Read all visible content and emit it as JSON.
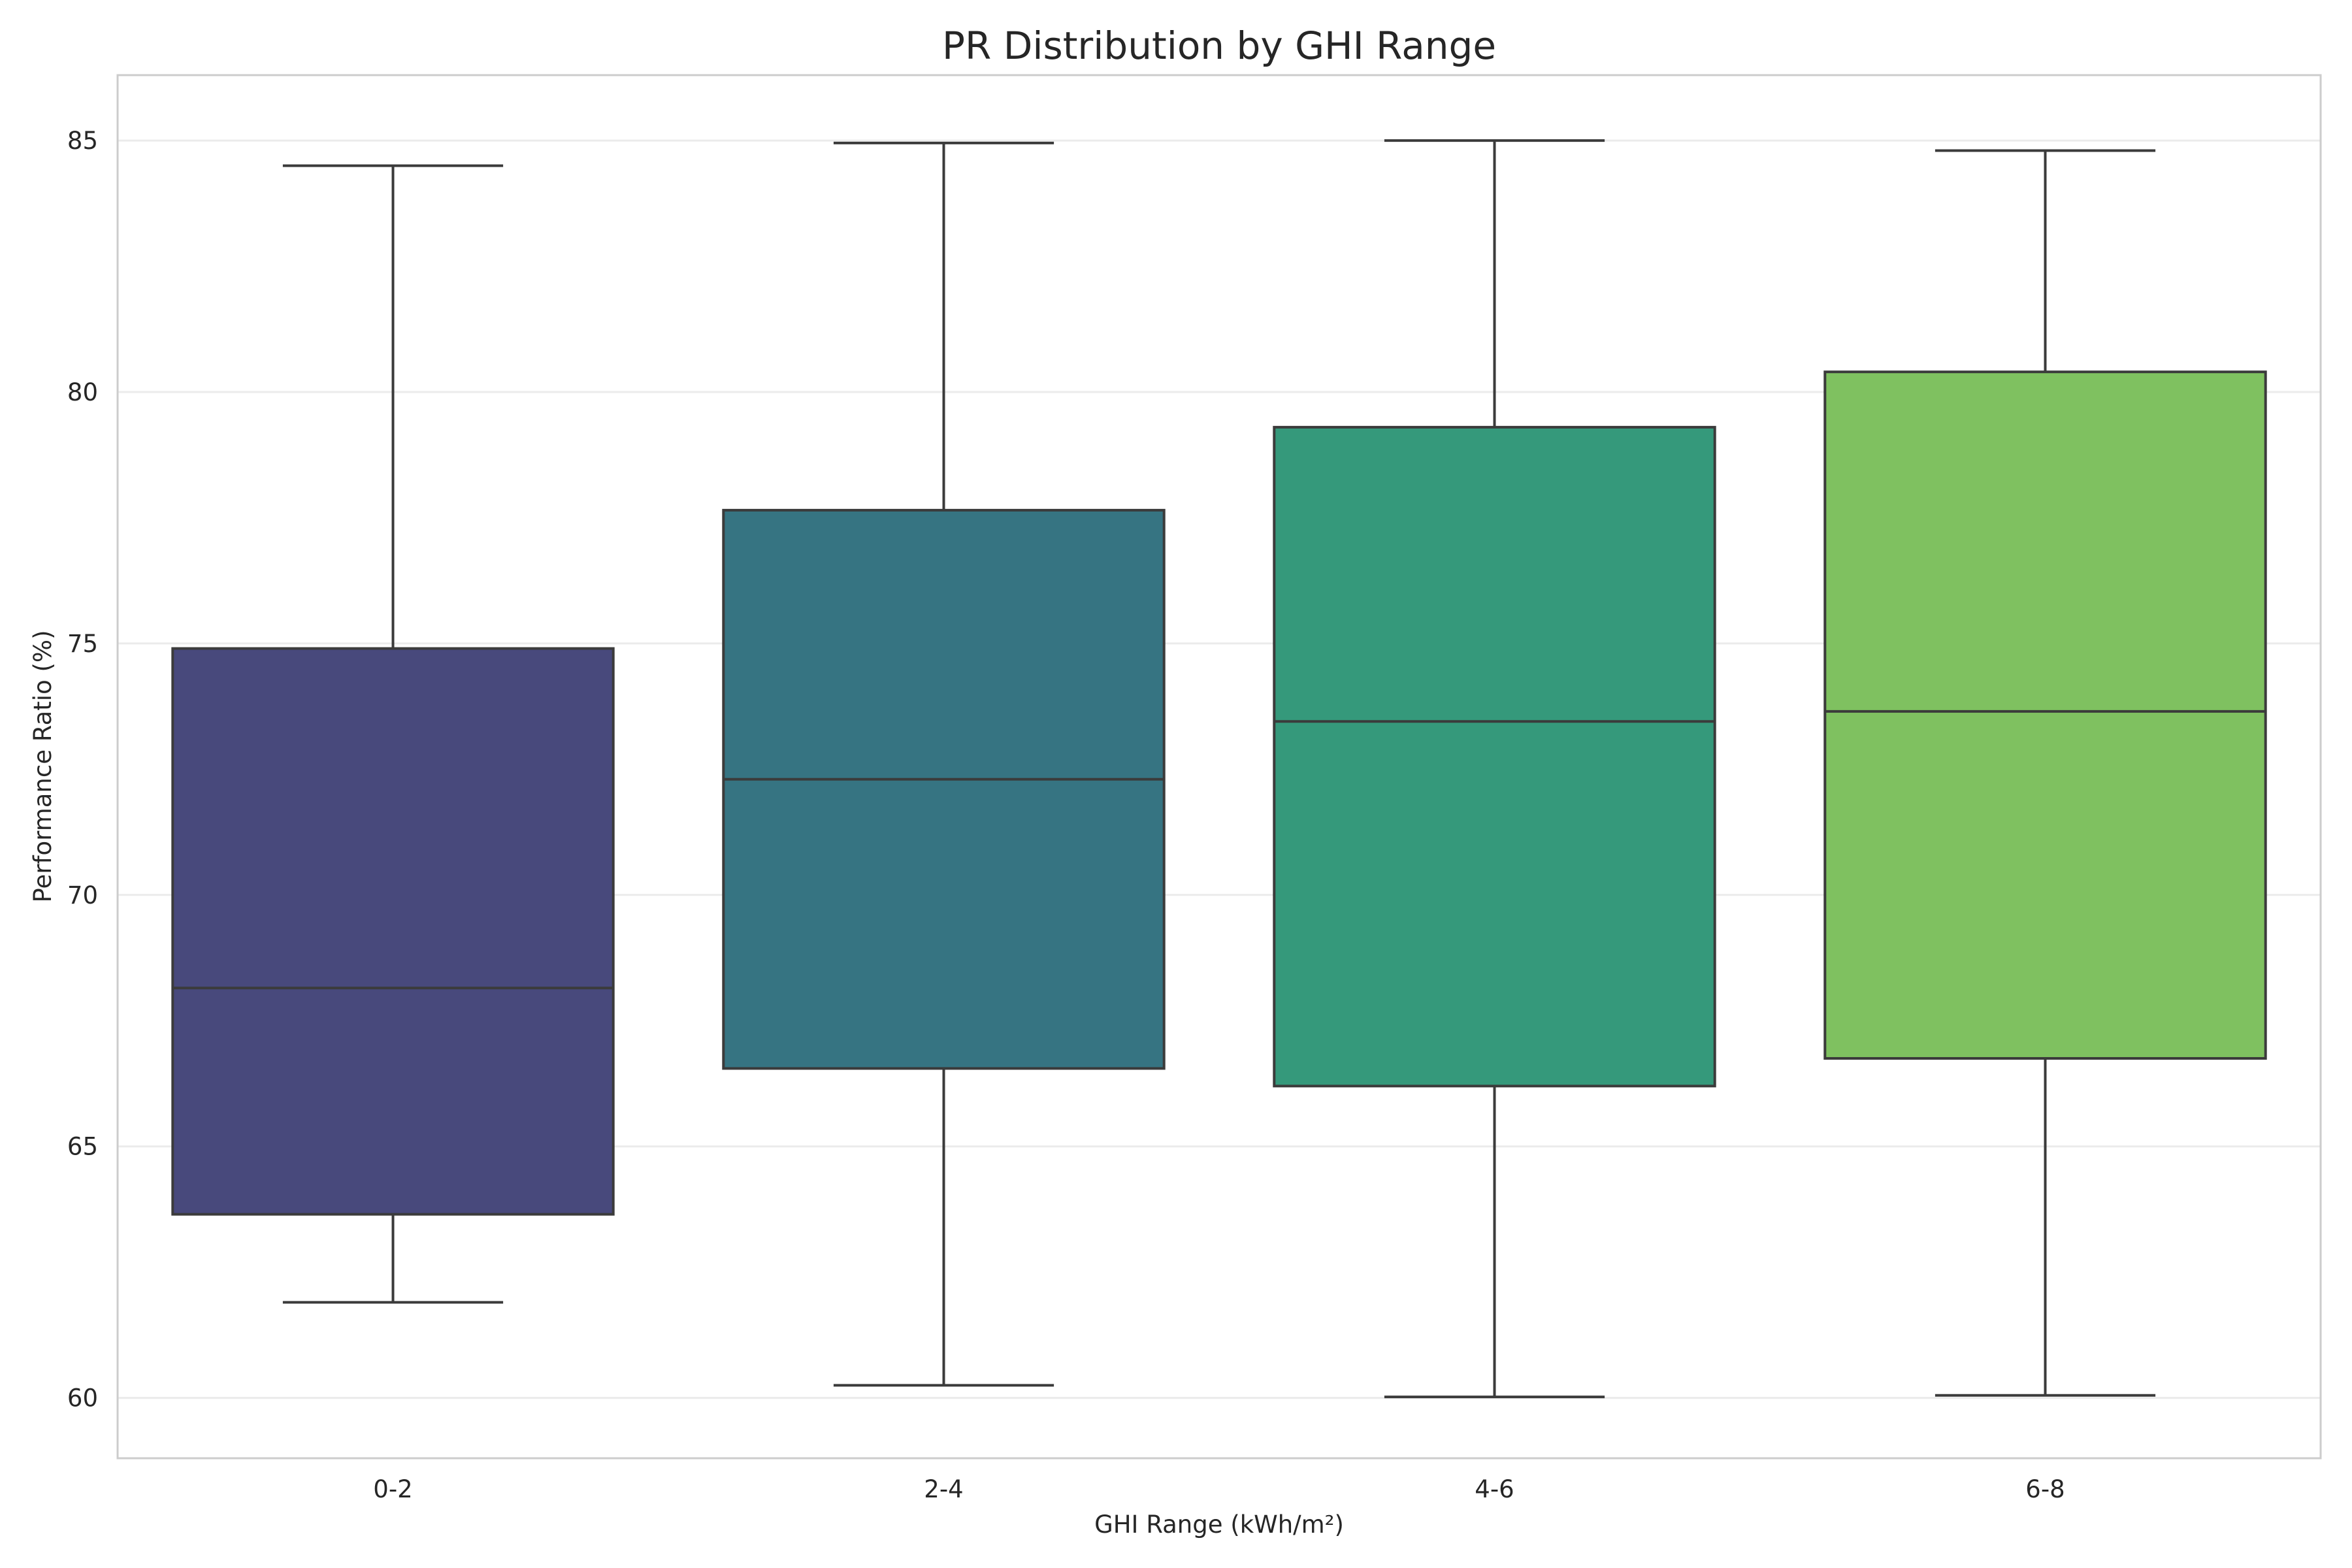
{
  "chart_data": {
    "type": "box",
    "title": "PR Distribution by GHI Range",
    "xlabel": "GHI Range (kWh/m²)",
    "ylabel": "Performance Ratio (%)",
    "ylim": [
      58.8,
      86.3
    ],
    "yticks": [
      60,
      65,
      70,
      75,
      80,
      85
    ],
    "grid": "horizontal",
    "categories": [
      "0-2",
      "2-4",
      "4-6",
      "6-8"
    ],
    "boxes": [
      {
        "category": "0-2",
        "whisker_low": 61.9,
        "q1": 63.65,
        "median": 68.15,
        "q3": 74.9,
        "whisker_high": 84.5,
        "color": "#48497c"
      },
      {
        "category": "2-4",
        "whisker_low": 60.25,
        "q1": 66.55,
        "median": 72.3,
        "q3": 77.65,
        "whisker_high": 84.95,
        "color": "#367482"
      },
      {
        "category": "4-6",
        "whisker_low": 60.02,
        "q1": 66.2,
        "median": 73.45,
        "q3": 79.3,
        "whisker_high": 85.0,
        "color": "#35997b"
      },
      {
        "category": "6-8",
        "whisker_low": 60.05,
        "q1": 66.75,
        "median": 73.65,
        "q3": 80.4,
        "whisker_high": 84.8,
        "color": "#7fc160"
      }
    ]
  }
}
